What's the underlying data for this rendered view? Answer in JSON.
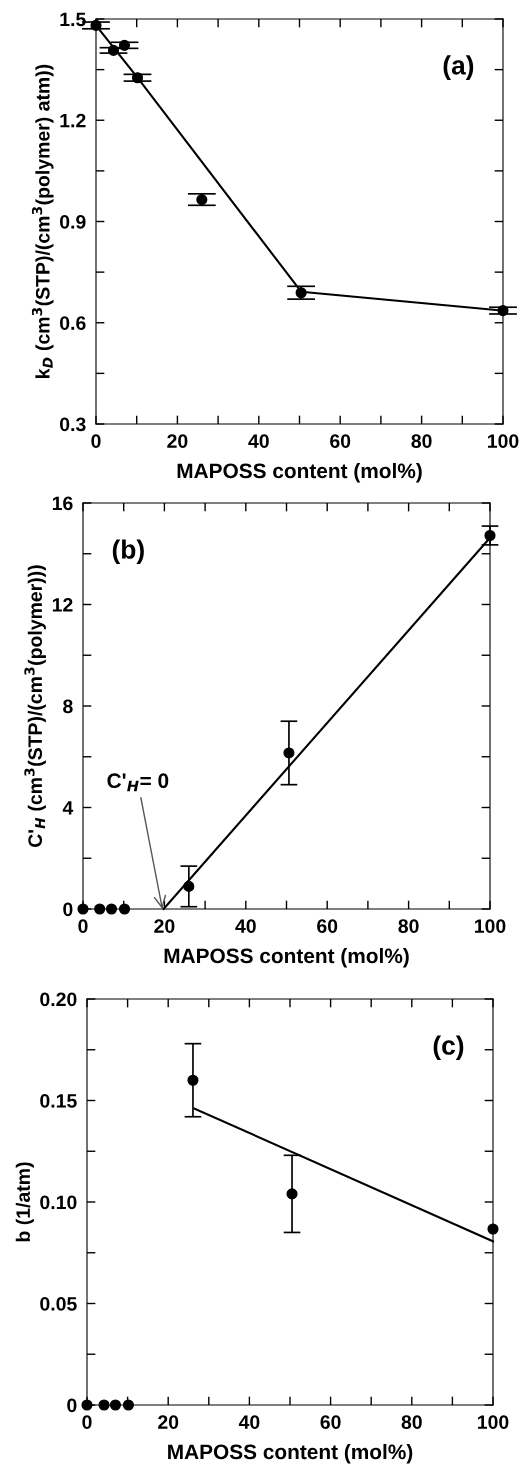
{
  "chart_data": [
    {
      "type": "scatter",
      "xlabel": "MAPOSS content (mol%)",
      "ylabel": "k$_{D}$ (cm$^{3}$(STP)/(cm$^{3}$(polymer) atm))",
      "annotations": [
        "(a)"
      ],
      "xlim": [
        0,
        100
      ],
      "xticks": [
        0,
        {
          "value": 10,
          "label": null
        },
        20,
        {
          "value": 30,
          "label": null
        },
        40,
        {
          "value": 50,
          "label": null
        },
        60,
        {
          "value": 70,
          "label": null
        },
        80,
        {
          "value": 90,
          "label": null
        },
        100
      ],
      "ylim": [
        0.3,
        1.5
      ],
      "yticks": [
        0.3,
        {
          "value": 0.45,
          "label": null
        },
        0.6,
        {
          "value": 0.75,
          "label": null
        },
        0.9,
        {
          "value": 1.05,
          "label": null
        },
        1.2,
        {
          "value": 1.35,
          "label": null
        },
        1.5
      ],
      "grid": false,
      "legend": false,
      "marker": "circle",
      "series": [
        {
          "color": "#000000",
          "x": [
            0,
            4.3,
            7.0,
            10.2,
            26.0,
            50.4,
            100
          ],
          "values": [
            1.481,
            1.407,
            1.422,
            1.326,
            0.965,
            0.689,
            0.636
          ],
          "errors": [
            0.01,
            0.008,
            0.009,
            0.01,
            0.017,
            0.019,
            0.01
          ]
        },
        {
          "type": "line",
          "color": "#000000",
          "line_style": "solid",
          "marker": "none",
          "x": [
            0,
            10.2,
            50.4,
            100
          ],
          "values": [
            1.481,
            1.326,
            0.692,
            0.636
          ]
        }
      ]
    },
    {
      "type": "scatter",
      "xlabel": "MAPOSS content (mol%)",
      "ylabel": "C'$_{H}$ (cm$^{3}$(STP)/(cm$^{3}$(polymer)))",
      "annotations": [
        "(b)",
        {
          "text": "C'$_{H}$= 0",
          "x": 19.5,
          "y": 0
        }
      ],
      "xlim": [
        0,
        100
      ],
      "xticks": [
        0,
        {
          "value": 10,
          "label": null
        },
        20,
        {
          "value": 30,
          "label": null
        },
        40,
        {
          "value": 50,
          "label": null
        },
        60,
        {
          "value": 70,
          "label": null
        },
        80,
        {
          "value": 90,
          "label": null
        },
        100
      ],
      "ylim": [
        0,
        16
      ],
      "yticks": [
        0,
        {
          "value": 2,
          "label": null
        },
        4,
        {
          "value": 6,
          "label": null
        },
        8,
        {
          "value": 10,
          "label": null
        },
        12,
        {
          "value": 14,
          "label": null
        },
        16
      ],
      "grid": false,
      "legend": false,
      "marker": "circle",
      "series": [
        {
          "color": "#000000",
          "x": [
            0,
            4.1,
            7.0,
            10.2,
            26.0,
            50.6,
            100
          ],
          "values": [
            0,
            0,
            0,
            0,
            0.89,
            6.15,
            14.72
          ],
          "errors": [
            null,
            null,
            null,
            null,
            0.8,
            1.25,
            0.37
          ]
        },
        {
          "type": "line",
          "color": "#000000",
          "line_style": "solid",
          "marker": "none",
          "x": [
            19.8,
            100
          ],
          "values": [
            0,
            14.63
          ]
        }
      ]
    },
    {
      "type": "scatter",
      "xlabel": "MAPOSS content (mol%)",
      "ylabel": "b (1/atm)",
      "annotations": [
        "(c)"
      ],
      "xlim": [
        0,
        100
      ],
      "xticks": [
        0,
        {
          "value": 10,
          "label": null
        },
        20,
        {
          "value": 30,
          "label": null
        },
        40,
        {
          "value": 50,
          "label": null
        },
        60,
        {
          "value": 70,
          "label": null
        },
        80,
        {
          "value": 90,
          "label": null
        },
        100
      ],
      "ylim": [
        0,
        0.2
      ],
      "yticks": [
        0,
        {
          "value": 0.025,
          "label": null
        },
        0.05,
        {
          "value": 0.075,
          "label": null
        },
        {
          "value": 0.1,
          "label": "0.10"
        },
        {
          "value": 0.125,
          "label": null
        },
        0.15,
        {
          "value": 0.175,
          "label": null
        },
        {
          "value": 0.2,
          "label": "0.20"
        }
      ],
      "grid": false,
      "legend": false,
      "marker": "circle",
      "series": [
        {
          "color": "#000000",
          "x": [
            0,
            4.2,
            7.0,
            10.2,
            26.1,
            50.5,
            100
          ],
          "values": [
            0,
            0,
            0,
            0,
            0.16,
            0.104,
            0.0867
          ],
          "errors": [
            null,
            null,
            null,
            null,
            0.018,
            0.019,
            null
          ]
        },
        {
          "type": "line",
          "color": "#000000",
          "line_style": "solid",
          "marker": "none",
          "x": [
            26.5,
            100
          ],
          "values": [
            0.146,
            0.0806
          ]
        }
      ]
    }
  ]
}
